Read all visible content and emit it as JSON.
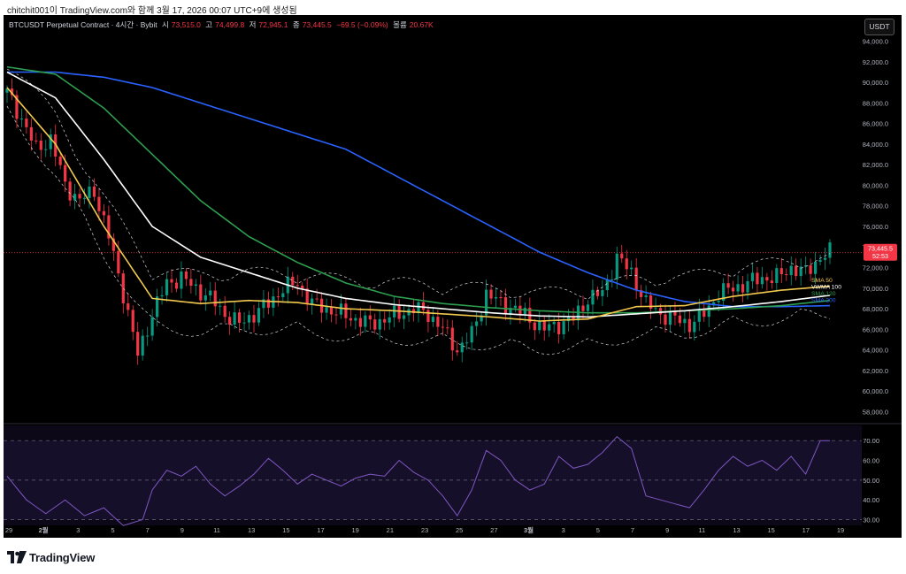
{
  "header": {
    "credit": "chitchit001이 TradingView.com와 함께 3월 17, 2026 00:07 UTC+9에 생성됨"
  },
  "symbol_bar": {
    "symbol": "BTCUSDT Perpetual Contract · 4시간 · Bybit",
    "open_label": "시",
    "open": "73,515.0",
    "high_label": "고",
    "high": "74,499.8",
    "low_label": "저",
    "low": "72,945.1",
    "close_label": "종",
    "close": "73,445.5",
    "change": "−69.5 (−0.09%)",
    "volume_label": "볼륨",
    "volume": "20.67K"
  },
  "currency_button": "USDT",
  "price_axis": {
    "ticks": [
      "94,000.0",
      "92,000.0",
      "90,000.0",
      "88,000.0",
      "86,000.0",
      "84,000.0",
      "82,000.0",
      "80,000.0",
      "78,000.0",
      "76,000.0",
      "74,000.0",
      "72,000.0",
      "70,000.0",
      "68,000.0",
      "66,000.0",
      "64,000.0",
      "62,000.0",
      "60,000.0",
      "58,000.0"
    ],
    "current_price": "73,445.5",
    "countdown": "52:53"
  },
  "ma_labels": [
    {
      "name": "SMA 50",
      "color": "#f2c94c"
    },
    {
      "name": "VWMA 100",
      "color": "#ffffff"
    },
    {
      "name": "SMA 120",
      "color": "#2e9e4f"
    },
    {
      "name": "SMA 200",
      "color": "#2962ff"
    }
  ],
  "rsi_axis": {
    "ticks": [
      "70.00",
      "60.00",
      "50.00",
      "40.00",
      "30.00"
    ]
  },
  "time_axis": {
    "ticks": [
      "29",
      "2월",
      "3",
      "5",
      "7",
      "9",
      "11",
      "13",
      "15",
      "17",
      "19",
      "21",
      "23",
      "25",
      "27",
      "3월",
      "3",
      "5",
      "7",
      "9",
      "11",
      "13",
      "15",
      "17",
      "19"
    ]
  },
  "colors": {
    "up": "#089981",
    "down": "#f23645",
    "background": "#000000",
    "rsi_line": "#7e57c2",
    "bands": "#d1d4dc"
  },
  "chart_data": {
    "type": "candlestick",
    "title": "BTCUSDT Perpetual Contract · 4시간 · Bybit",
    "ylim": [
      57000,
      95000
    ],
    "rsi_ylim": [
      28,
      75
    ],
    "x": [
      "29",
      "2월",
      "3",
      "5",
      "7",
      "9",
      "11",
      "13",
      "15",
      "17",
      "19",
      "21",
      "23",
      "25",
      "27",
      "3월",
      "3",
      "5",
      "7",
      "9",
      "11",
      "13",
      "15",
      "17",
      "19"
    ],
    "price_path": [
      [
        0,
        89000
      ],
      [
        3,
        86500
      ],
      [
        6,
        83500
      ],
      [
        9,
        84500
      ],
      [
        12,
        80000
      ],
      [
        15,
        78500
      ],
      [
        18,
        79500
      ],
      [
        21,
        75000
      ],
      [
        24,
        69500
      ],
      [
        27,
        63500
      ],
      [
        30,
        67500
      ],
      [
        33,
        70500
      ],
      [
        36,
        71000
      ],
      [
        39,
        70000
      ],
      [
        42,
        69000
      ],
      [
        45,
        67500
      ],
      [
        48,
        66500
      ],
      [
        51,
        67500
      ],
      [
        54,
        68500
      ],
      [
        57,
        70000
      ],
      [
        60,
        70500
      ],
      [
        63,
        68500
      ],
      [
        66,
        68000
      ],
      [
        69,
        67500
      ],
      [
        72,
        67000
      ],
      [
        75,
        66500
      ],
      [
        78,
        67000
      ],
      [
        81,
        67500
      ],
      [
        84,
        68000
      ],
      [
        87,
        67500
      ],
      [
        90,
        66000
      ],
      [
        93,
        64000
      ],
      [
        96,
        65500
      ],
      [
        99,
        69500
      ],
      [
        102,
        68500
      ],
      [
        105,
        68000
      ],
      [
        108,
        67000
      ],
      [
        111,
        66000
      ],
      [
        114,
        66500
      ],
      [
        117,
        67000
      ],
      [
        120,
        69000
      ],
      [
        123,
        69500
      ],
      [
        126,
        73000
      ],
      [
        129,
        71500
      ],
      [
        132,
        68500
      ],
      [
        135,
        67500
      ],
      [
        138,
        67000
      ],
      [
        141,
        66500
      ],
      [
        144,
        67500
      ],
      [
        147,
        69500
      ],
      [
        150,
        70000
      ],
      [
        153,
        70500
      ],
      [
        156,
        71000
      ],
      [
        159,
        71000
      ],
      [
        162,
        72000
      ],
      [
        165,
        71500
      ],
      [
        168,
        73000
      ],
      [
        170,
        73450
      ]
    ],
    "last_price": 73445.5,
    "sma50": [
      [
        0,
        89500
      ],
      [
        10,
        84000
      ],
      [
        20,
        76000
      ],
      [
        30,
        69000
      ],
      [
        40,
        68500
      ],
      [
        50,
        68800
      ],
      [
        60,
        68600
      ],
      [
        70,
        68000
      ],
      [
        80,
        67800
      ],
      [
        90,
        67500
      ],
      [
        100,
        67200
      ],
      [
        110,
        66800
      ],
      [
        120,
        67000
      ],
      [
        130,
        68200
      ],
      [
        140,
        68300
      ],
      [
        150,
        69200
      ],
      [
        160,
        69800
      ],
      [
        170,
        70200
      ]
    ],
    "vwma100": [
      [
        0,
        91000
      ],
      [
        10,
        88500
      ],
      [
        20,
        82500
      ],
      [
        30,
        76000
      ],
      [
        40,
        73000
      ],
      [
        50,
        71500
      ],
      [
        60,
        70000
      ],
      [
        70,
        69000
      ],
      [
        80,
        68400
      ],
      [
        90,
        68000
      ],
      [
        100,
        67600
      ],
      [
        110,
        67300
      ],
      [
        120,
        67200
      ],
      [
        130,
        67500
      ],
      [
        140,
        67800
      ],
      [
        150,
        68200
      ],
      [
        160,
        68700
      ],
      [
        170,
        69300
      ]
    ],
    "sma120": [
      [
        0,
        91500
      ],
      [
        10,
        90800
      ],
      [
        20,
        87500
      ],
      [
        30,
        83000
      ],
      [
        40,
        78500
      ],
      [
        50,
        75000
      ],
      [
        60,
        72500
      ],
      [
        70,
        70500
      ],
      [
        80,
        69200
      ],
      [
        90,
        68500
      ],
      [
        100,
        68100
      ],
      [
        110,
        67800
      ],
      [
        120,
        67600
      ],
      [
        130,
        67600
      ],
      [
        140,
        67800
      ],
      [
        150,
        68000
      ],
      [
        160,
        68300
      ],
      [
        170,
        68800
      ]
    ],
    "sma200": [
      [
        0,
        91000
      ],
      [
        10,
        91000
      ],
      [
        20,
        90500
      ],
      [
        30,
        89500
      ],
      [
        40,
        88000
      ],
      [
        50,
        86500
      ],
      [
        60,
        85000
      ],
      [
        70,
        83500
      ],
      [
        80,
        81000
      ],
      [
        90,
        78500
      ],
      [
        100,
        76000
      ],
      [
        110,
        73500
      ],
      [
        120,
        71500
      ],
      [
        130,
        69800
      ],
      [
        140,
        68700
      ],
      [
        150,
        68200
      ],
      [
        160,
        68200
      ],
      [
        170,
        68300
      ]
    ],
    "rsi": [
      [
        0,
        52
      ],
      [
        4,
        40
      ],
      [
        8,
        33
      ],
      [
        12,
        40
      ],
      [
        16,
        32
      ],
      [
        20,
        36
      ],
      [
        24,
        27
      ],
      [
        28,
        30
      ],
      [
        30,
        45
      ],
      [
        33,
        55
      ],
      [
        36,
        52
      ],
      [
        39,
        57
      ],
      [
        42,
        48
      ],
      [
        45,
        42
      ],
      [
        48,
        47
      ],
      [
        51,
        53
      ],
      [
        54,
        61
      ],
      [
        57,
        55
      ],
      [
        60,
        48
      ],
      [
        63,
        53
      ],
      [
        66,
        50
      ],
      [
        69,
        47
      ],
      [
        72,
        51
      ],
      [
        75,
        53
      ],
      [
        78,
        52
      ],
      [
        81,
        60
      ],
      [
        84,
        54
      ],
      [
        87,
        50
      ],
      [
        90,
        42
      ],
      [
        93,
        32
      ],
      [
        96,
        45
      ],
      [
        99,
        65
      ],
      [
        102,
        60
      ],
      [
        105,
        50
      ],
      [
        108,
        45
      ],
      [
        111,
        48
      ],
      [
        114,
        62
      ],
      [
        117,
        56
      ],
      [
        120,
        58
      ],
      [
        123,
        64
      ],
      [
        126,
        72
      ],
      [
        129,
        66
      ],
      [
        132,
        42
      ],
      [
        135,
        40
      ],
      [
        138,
        38
      ],
      [
        141,
        36
      ],
      [
        144,
        45
      ],
      [
        147,
        55
      ],
      [
        150,
        62
      ],
      [
        153,
        57
      ],
      [
        156,
        60
      ],
      [
        159,
        55
      ],
      [
        162,
        62
      ],
      [
        165,
        53
      ],
      [
        168,
        70
      ],
      [
        170,
        70
      ]
    ]
  }
}
